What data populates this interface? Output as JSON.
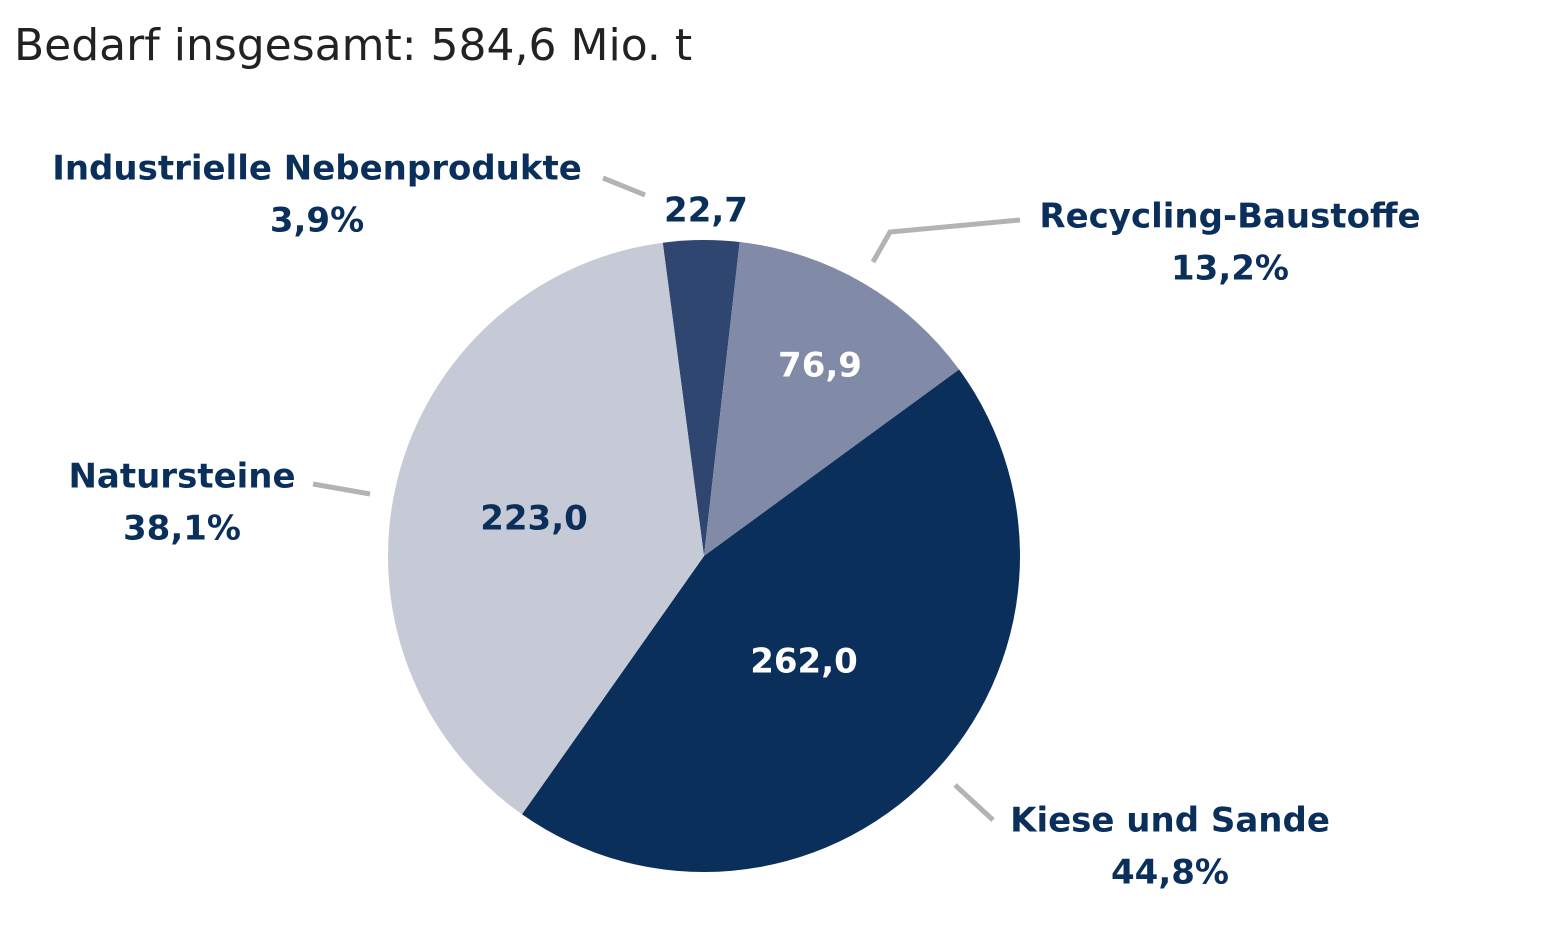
{
  "chart_data": {
    "type": "pie",
    "title": "Bedarf insgesamt: 584,6 Mio. t",
    "categories": [
      "Industrielle Nebenprodukte",
      "Recycling-Baustoffe",
      "Kiese und Sande",
      "Natursteine"
    ],
    "values": [
      22.7,
      76.9,
      262.0,
      223.0
    ],
    "value_labels": [
      "22,7",
      "76,9",
      "262,0",
      "223,0"
    ],
    "percentages": [
      {
        "value": 3.9,
        "label": "3,9%"
      },
      {
        "value": 13.2,
        "label": "13,2%"
      },
      {
        "value": 44.8,
        "label": "44,8%"
      },
      {
        "value": 38.1,
        "label": "38,1%"
      }
    ],
    "colors": [
      "#2f4670",
      "#818ba8",
      "#0b2f5b",
      "#c6cad7"
    ]
  }
}
